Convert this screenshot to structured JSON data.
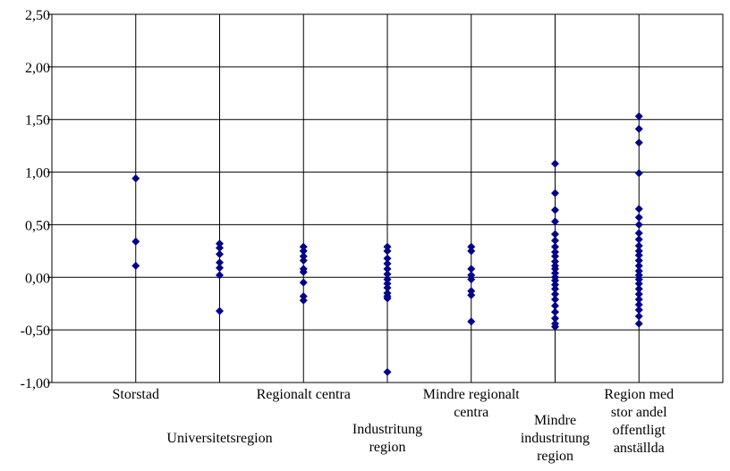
{
  "chart_data": {
    "type": "scatter",
    "title": "",
    "xlabel": "",
    "ylabel": "",
    "ylim": [
      -1.0,
      2.5
    ],
    "yticks": [
      "2,50",
      "2,00",
      "1,50",
      "1,00",
      "0,50",
      "0,00",
      "-0,50",
      "-1,00"
    ],
    "ytick_values": [
      2.5,
      2.0,
      1.5,
      1.0,
      0.5,
      0.0,
      -0.5,
      -1.0
    ],
    "grid": {
      "horizontal": true,
      "vertical": true
    },
    "marker_color": "#00008B",
    "categories": [
      {
        "label": [
          "Storstad"
        ],
        "values": [
          0.94,
          0.34,
          0.11
        ]
      },
      {
        "label": [
          "Universitetsregion"
        ],
        "values": [
          0.32,
          0.28,
          0.22,
          0.14,
          0.09,
          0.02,
          -0.32
        ]
      },
      {
        "label": [
          "Regionalt centra"
        ],
        "values": [
          0.29,
          0.25,
          0.2,
          0.16,
          0.08,
          0.05,
          -0.05,
          -0.18,
          -0.22
        ]
      },
      {
        "label": [
          "Industritung",
          "region"
        ],
        "values": [
          0.29,
          0.25,
          0.18,
          0.13,
          0.08,
          0.03,
          -0.02,
          -0.06,
          -0.1,
          -0.15,
          -0.18,
          -0.2,
          -0.9
        ]
      },
      {
        "label": [
          "Mindre regionalt",
          "centra"
        ],
        "values": [
          0.29,
          0.25,
          0.08,
          0.02,
          -0.02,
          -0.13,
          -0.17,
          -0.42
        ]
      },
      {
        "label": [
          "Mindre",
          "industritung",
          "region"
        ],
        "values": [
          1.08,
          0.8,
          0.64,
          0.53,
          0.41,
          0.35,
          0.29,
          0.24,
          0.2,
          0.15,
          0.11,
          0.08,
          0.04,
          0.0,
          -0.03,
          -0.07,
          -0.11,
          -0.16,
          -0.21,
          -0.27,
          -0.33,
          -0.39,
          -0.44,
          -0.47
        ]
      },
      {
        "label": [
          "Region med",
          "stor andel",
          "offentligt",
          "anställda"
        ],
        "values": [
          1.53,
          1.41,
          1.28,
          0.99,
          0.65,
          0.57,
          0.5,
          0.42,
          0.36,
          0.3,
          0.25,
          0.21,
          0.16,
          0.11,
          0.06,
          0.02,
          -0.02,
          -0.06,
          -0.11,
          -0.16,
          -0.21,
          -0.26,
          -0.31,
          -0.37,
          -0.44
        ]
      }
    ]
  }
}
